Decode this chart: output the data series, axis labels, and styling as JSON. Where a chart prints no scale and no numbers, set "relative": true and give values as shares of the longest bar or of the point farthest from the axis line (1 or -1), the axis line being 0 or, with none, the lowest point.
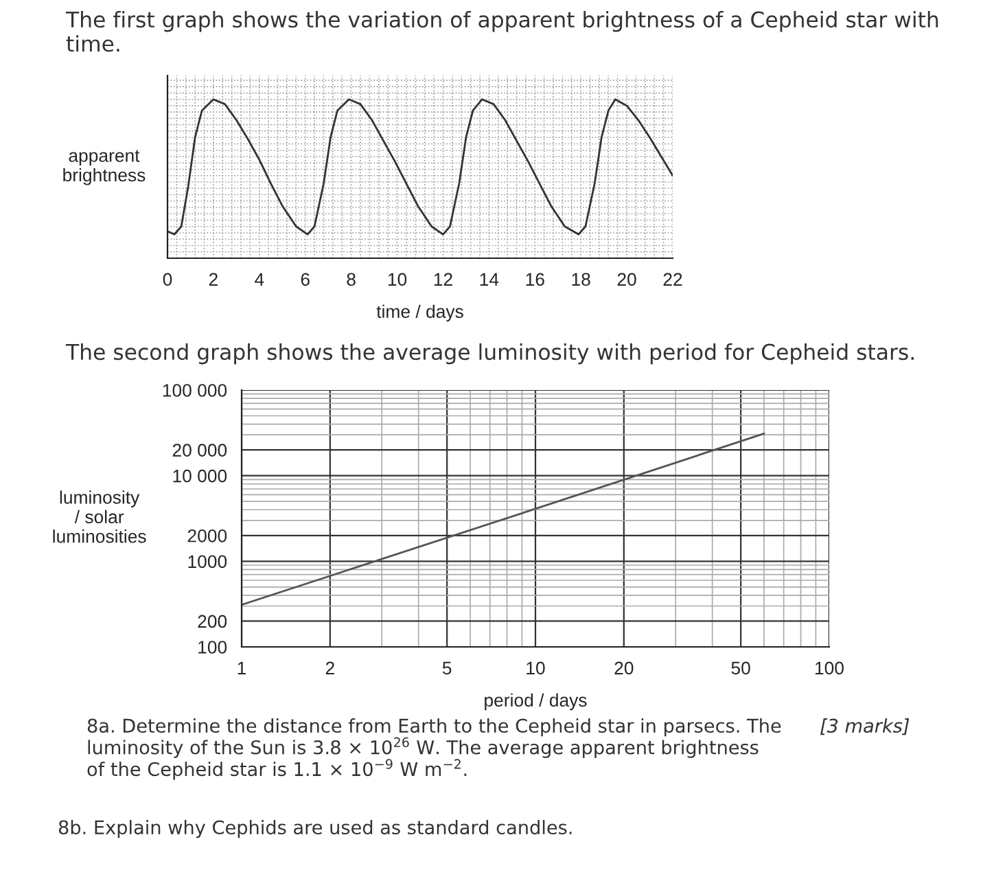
{
  "chart_data": [
    {
      "type": "line",
      "title": "The first graph shows the variation of apparent brightness of a Cepheid star with time.",
      "xlabel": "time / days",
      "ylabel": "apparent\nbrightness",
      "relative": true,
      "grid": true,
      "color": "#333333",
      "x": [
        0,
        0.3,
        0.6,
        0.9,
        1.2,
        1.5,
        2.0,
        2.5,
        3.0,
        3.5,
        4.0,
        4.5,
        5.0,
        5.6,
        6.1,
        6.4,
        6.8,
        7.1,
        7.4,
        7.9,
        8.4,
        8.9,
        9.4,
        9.9,
        10.4,
        10.9,
        11.5,
        12.0,
        12.3,
        12.7,
        13.0,
        13.3,
        13.7,
        14.2,
        14.7,
        15.2,
        15.7,
        16.2,
        16.7,
        17.3,
        17.9,
        18.2,
        18.6,
        18.9,
        19.2,
        19.5,
        20.0,
        20.5,
        21.0,
        21.5,
        22.0
      ],
      "values": [
        0.17,
        0.15,
        0.2,
        0.45,
        0.76,
        0.93,
        1.0,
        0.97,
        0.87,
        0.75,
        0.62,
        0.47,
        0.33,
        0.2,
        0.15,
        0.2,
        0.47,
        0.76,
        0.93,
        1.0,
        0.97,
        0.87,
        0.74,
        0.61,
        0.47,
        0.33,
        0.2,
        0.15,
        0.2,
        0.47,
        0.76,
        0.93,
        1.0,
        0.97,
        0.87,
        0.74,
        0.61,
        0.47,
        0.33,
        0.2,
        0.15,
        0.2,
        0.47,
        0.76,
        0.93,
        1.0,
        0.96,
        0.87,
        0.76,
        0.64,
        0.52
      ],
      "xlim": [
        0,
        22
      ],
      "xticks": [
        0,
        2,
        4,
        6,
        8,
        10,
        12,
        14,
        16,
        18,
        20,
        22
      ]
    },
    {
      "type": "line",
      "title": "The second graph shows the average luminosity with period for Cepheid stars.",
      "xlabel": "period / days",
      "ylabel": "luminosity\n/ solar\nluminosities",
      "log": "xy",
      "grid": true,
      "color": "#555555",
      "x": [
        1,
        10,
        60
      ],
      "values": [
        310,
        4100,
        31000
      ],
      "xlim": [
        1,
        100
      ],
      "xticks": [
        1,
        2,
        5,
        10,
        20,
        50,
        100
      ],
      "ylim": [
        100,
        100000
      ],
      "yticks": [
        100,
        200,
        1000,
        2000,
        {
          "value": 10000,
          "label": "10 000"
        },
        {
          "value": 20000,
          "label": "20 000"
        },
        {
          "value": 100000,
          "label": "100 000"
        }
      ],
      "annotations": [
        "8a. Determine the distance from Earth to the Cepheid star in parsecs. The\nluminosity of the Sun is 3.8 × 10$^{26}$ W. The average apparent brightness\nof the Cepheid star is 1.1 × 10$^{−9}$ W m$^{−2}$.",
        "[3 marks]",
        "8b. Explain why Cephids are used as standard candles."
      ]
    }
  ]
}
